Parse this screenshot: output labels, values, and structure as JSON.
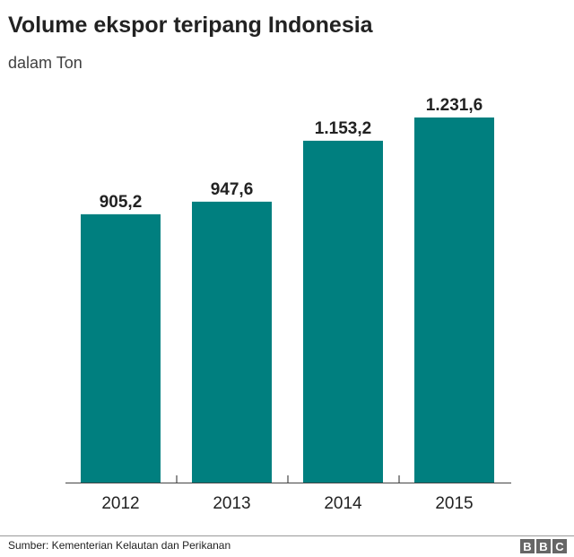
{
  "chart_data": {
    "type": "bar",
    "title": "Volume ekspor teripang Indonesia",
    "subtitle": "dalam Ton",
    "categories": [
      "2012",
      "2013",
      "2014",
      "2015"
    ],
    "values": [
      905.2,
      947.6,
      1153.2,
      1231.6
    ],
    "data_labels": [
      "905,2",
      "947,6",
      "1.153,2",
      "1.231,6"
    ],
    "ylim": [
      0,
      1300
    ],
    "grid": false,
    "bar_color": "#007f7f"
  },
  "footer": {
    "source": "Sumber: Kementerian Kelautan dan Perikanan",
    "logo": "BBC"
  }
}
